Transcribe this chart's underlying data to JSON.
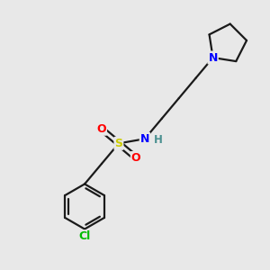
{
  "background_color": "#e8e8e8",
  "atom_colors": {
    "N": "#0000ff",
    "S": "#cccc00",
    "O": "#ff0000",
    "Cl": "#00bb00",
    "C": "#000000",
    "H": "#4a9090"
  },
  "bond_color": "#1a1a1a",
  "bond_width": 1.6,
  "fig_bg": "#e8e8e8"
}
